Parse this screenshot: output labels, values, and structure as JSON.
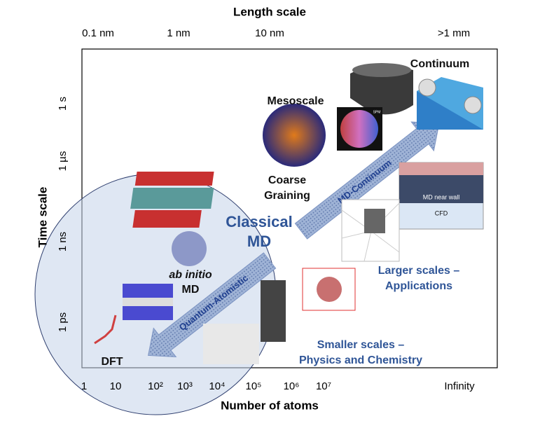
{
  "header": {
    "top_axis_title": "Length scale",
    "left_axis_title": "Time scale",
    "bottom_axis_title": "Number of atoms"
  },
  "top_ticks": [
    "0.1 nm",
    "1 nm",
    "10 nm",
    ">1 mm"
  ],
  "left_ticks": [
    "1 s",
    "1 µs",
    "1 ns",
    "1 ps"
  ],
  "bottom_ticks": [
    "1",
    "10",
    "10²",
    "10³",
    "10⁴",
    "10⁵",
    "10⁶",
    "10⁷",
    "Infinity"
  ],
  "labels": {
    "continuum": "Continuum",
    "mesoscale": "Mesoscale",
    "coarse_graining": [
      "Coarse",
      "Graining"
    ],
    "classical_md": [
      "Classical",
      "MD"
    ],
    "ab_initio": "ab initio",
    "ab_initio_md": "MD",
    "dft": "DFT",
    "larger_scales": [
      "Larger scales –",
      "Applications"
    ],
    "smaller_scales": [
      "Smaller scales –",
      "Physics and Chemistry"
    ],
    "spm": "SPM",
    "md_near_wall": "MD near wall",
    "cfd": "CFD"
  },
  "arrows": {
    "md_continuum": "MD-Continuum",
    "quantum_atomistic": "Quantum-Atomistic"
  }
}
